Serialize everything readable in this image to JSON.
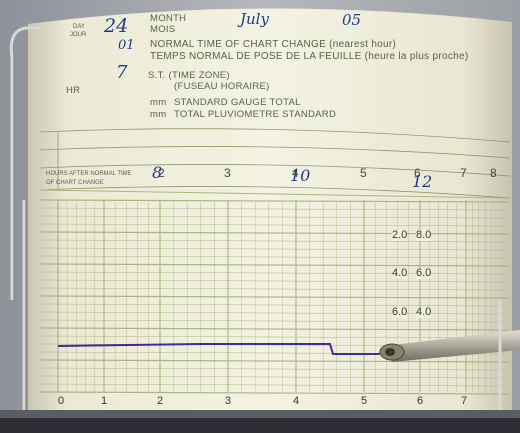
{
  "header": {
    "day_label": "DAY",
    "jour_label": "JOUR",
    "day_value": "24",
    "month_label": "MONTH",
    "mois_label": "MOIS",
    "month_value": "July",
    "year_value": "05",
    "chart_change_hour": "01",
    "normal_time_label": "NORMAL TIME OF CHART CHANGE (nearest hour)",
    "temps_normal_label": "TEMPS NORMAL DE POSE DE LA FEUILLE (heure la plus proche)",
    "hr_label": "HR",
    "time_zone_value": "7",
    "st_label": "S.T. (TIME ZONE)",
    "fuseau_label": "(FUSEAU HORAIRE)",
    "mm_label": "mm",
    "standard_gauge_label": "STANDARD GAUGE TOTAL",
    "total_pluvio_label": "TOTAL PLUVIOMETRE STANDARD"
  },
  "chart": {
    "hours_after_label_1": "HOURS AFTER NORMAL TIME",
    "hours_after_label_2": "OF CHART CHANGE",
    "top_hour_ticks": [
      "2",
      "3",
      "4",
      "5",
      "6",
      "7",
      "8"
    ],
    "bottom_hour_ticks": [
      "0",
      "1",
      "2",
      "3",
      "4",
      "5",
      "6",
      "7"
    ],
    "scale_pairs": [
      {
        "left": "2.0",
        "right": "8.0"
      },
      {
        "left": "4.0",
        "right": "6.0"
      },
      {
        "left": "6.0",
        "right": "4.0"
      }
    ],
    "handwritten_hours": [
      "8",
      "10",
      "12"
    ]
  },
  "colors": {
    "paper": "#f1efdd",
    "grid": "#a9b77e",
    "trace": "#3a2f9a"
  }
}
